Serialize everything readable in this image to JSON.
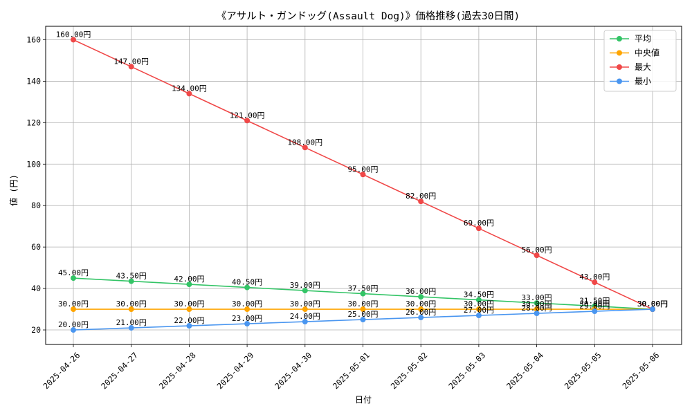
{
  "chart_data": {
    "type": "line",
    "title": "《アサルト・ガンドッグ(Assault Dog)》価格推移(過去30日間)",
    "xlabel": "日付",
    "ylabel": "値 (円)",
    "categories": [
      "2025-04-26",
      "2025-04-27",
      "2025-04-28",
      "2025-04-29",
      "2025-04-30",
      "2025-05-01",
      "2025-05-02",
      "2025-05-03",
      "2025-05-04",
      "2025-05-05",
      "2025-05-06"
    ],
    "ylim": [
      13,
      166.5
    ],
    "yticks": [
      20,
      40,
      60,
      80,
      100,
      120,
      140,
      160
    ],
    "grid": true,
    "legend_position": "top-right",
    "label_suffix": "円",
    "series": [
      {
        "name": "平均",
        "color": "#33c466",
        "values": [
          45.0,
          43.5,
          42.0,
          40.5,
          39.0,
          37.5,
          36.0,
          34.5,
          33.0,
          31.5,
          30.0
        ]
      },
      {
        "name": "中央値",
        "color": "#ffa500",
        "values": [
          30.0,
          30.0,
          30.0,
          30.0,
          30.0,
          30.0,
          30.0,
          30.0,
          30.0,
          30.0,
          30.0
        ]
      },
      {
        "name": "最大",
        "color": "#f04848",
        "values": [
          160.0,
          147.0,
          134.0,
          121.0,
          108.0,
          95.0,
          82.0,
          69.0,
          56.0,
          43.0,
          30.0
        ]
      },
      {
        "name": "最小",
        "color": "#4a96f0",
        "values": [
          20.0,
          21.0,
          22.0,
          23.0,
          24.0,
          25.0,
          26.0,
          27.0,
          28.0,
          29.0,
          30.0
        ]
      }
    ]
  }
}
